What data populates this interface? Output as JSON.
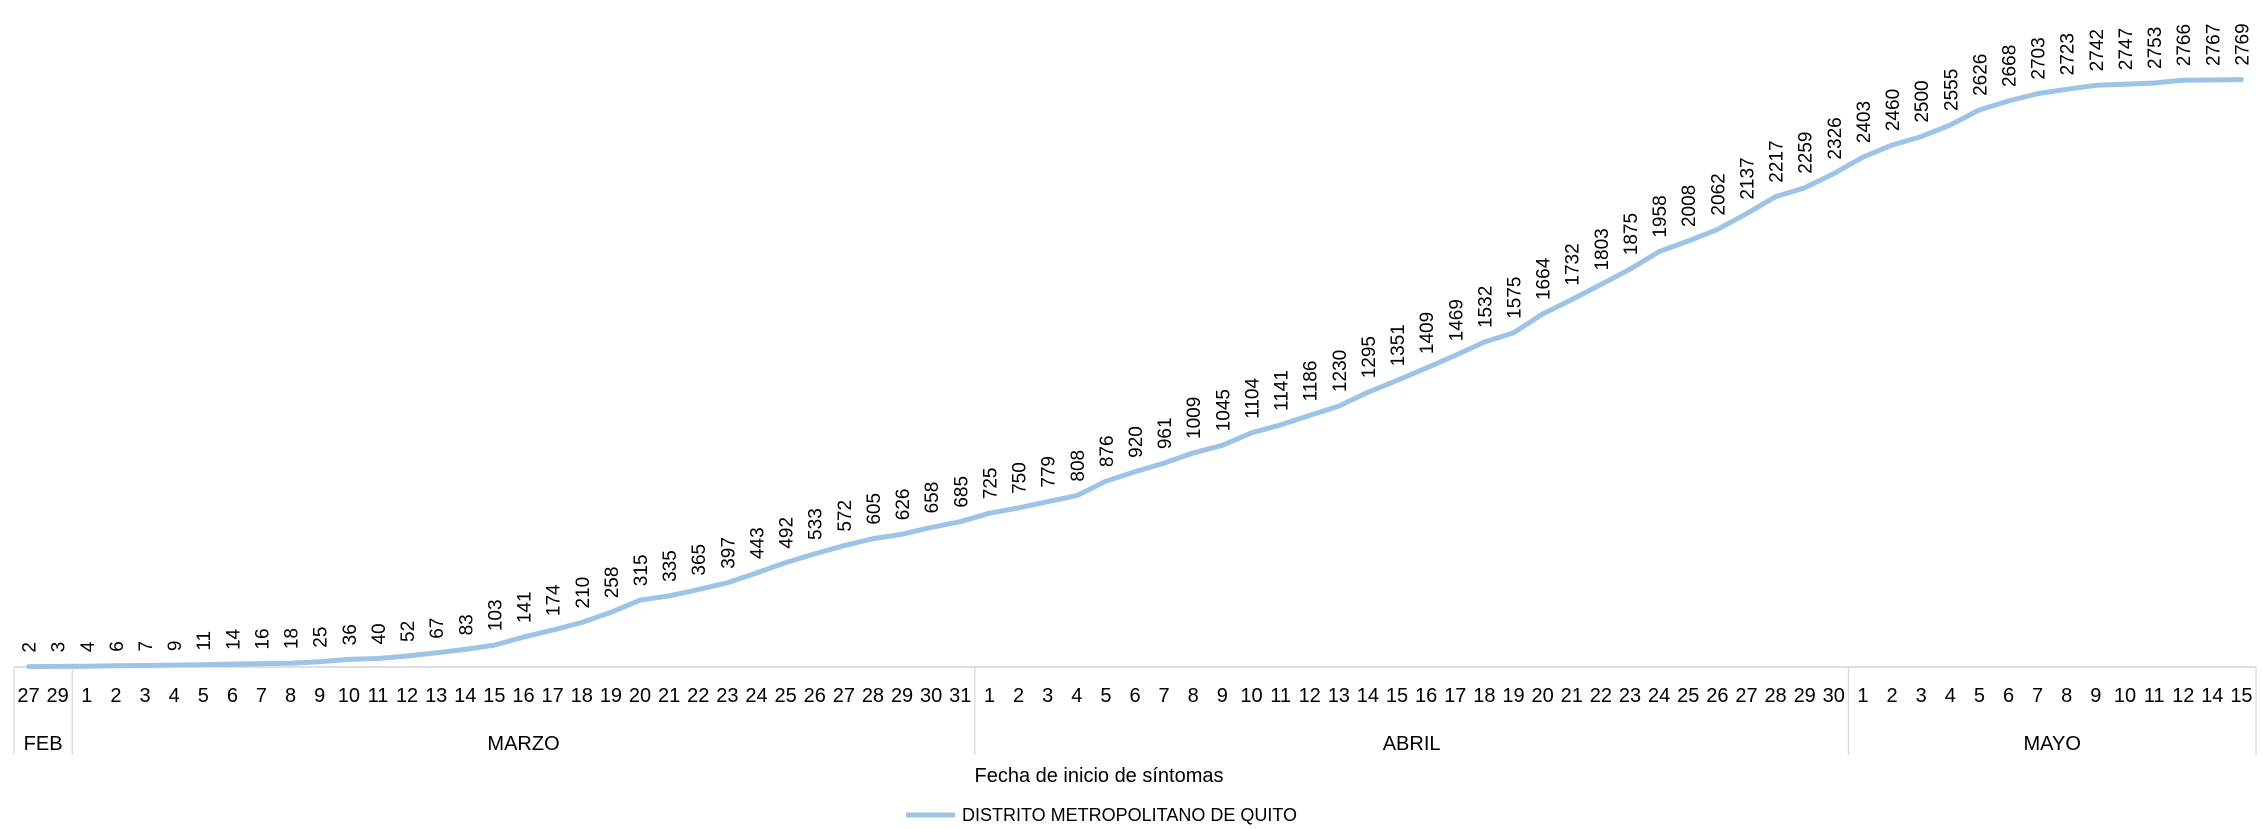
{
  "chart_data": {
    "type": "line",
    "xlabel": "Fecha de inicio de síntomas",
    "ylabel": "",
    "ylim": [
      0,
      2800
    ],
    "grid": false,
    "legend_position": "bottom",
    "series": [
      {
        "name": "DISTRITO METROPOLITANO DE QUITO",
        "color": "#9DC3E6",
        "values": [
          2,
          3,
          4,
          6,
          7,
          9,
          11,
          14,
          16,
          18,
          25,
          36,
          40,
          52,
          67,
          83,
          103,
          141,
          174,
          210,
          258,
          315,
          335,
          365,
          397,
          443,
          492,
          533,
          572,
          605,
          626,
          658,
          685,
          725,
          750,
          779,
          808,
          876,
          920,
          961,
          1009,
          1045,
          1104,
          1141,
          1186,
          1230,
          1295,
          1351,
          1409,
          1469,
          1532,
          1575,
          1664,
          1732,
          1803,
          1875,
          1958,
          2008,
          2062,
          2137,
          2217,
          2259,
          2326,
          2403,
          2460,
          2500,
          2555,
          2626,
          2668,
          2703,
          2723,
          2742,
          2747,
          2753,
          2766,
          2767,
          2769
        ]
      }
    ],
    "categories": [
      "27",
      "29",
      "1",
      "2",
      "3",
      "4",
      "5",
      "6",
      "7",
      "8",
      "9",
      "10",
      "11",
      "12",
      "13",
      "14",
      "15",
      "16",
      "17",
      "18",
      "19",
      "20",
      "21",
      "22",
      "23",
      "24",
      "25",
      "26",
      "27",
      "28",
      "29",
      "30",
      "31",
      "1",
      "2",
      "3",
      "4",
      "5",
      "6",
      "7",
      "8",
      "9",
      "10",
      "11",
      "12",
      "13",
      "14",
      "15",
      "16",
      "17",
      "18",
      "19",
      "20",
      "21",
      "22",
      "23",
      "24",
      "25",
      "26",
      "27",
      "28",
      "29",
      "30",
      "1",
      "2",
      "3",
      "4",
      "5",
      "6",
      "7",
      "8",
      "9",
      "10",
      "11",
      "12",
      "14",
      "15"
    ],
    "category_groups": [
      {
        "label": "FEB",
        "count": 2
      },
      {
        "label": "MARZO",
        "count": 31
      },
      {
        "label": "ABRIL",
        "count": 30
      },
      {
        "label": "MAYO",
        "count": 14
      }
    ]
  }
}
